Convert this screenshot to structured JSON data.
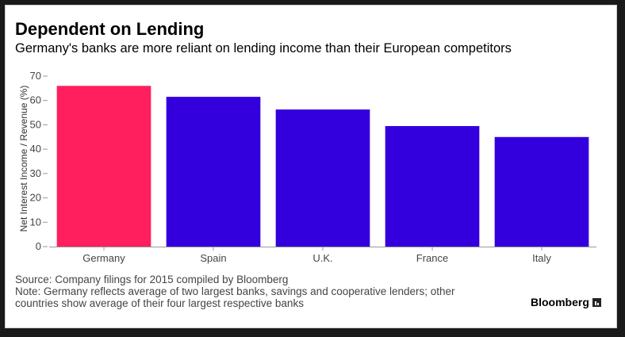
{
  "chart_data": {
    "type": "bar",
    "title": "Dependent on Lending",
    "subtitle": "Germany's banks are more reliant on lending income than their European competitors",
    "xlabel": "",
    "ylabel": "Net Interest Income / Revenue (%)",
    "categories": [
      "Germany",
      "Spain",
      "U.K.",
      "France",
      "Italy"
    ],
    "values": [
      66,
      61.5,
      56.3,
      49.5,
      45
    ],
    "ylim": [
      0,
      70
    ],
    "yticks": [
      "0",
      "10",
      "20",
      "30",
      "40",
      "50",
      "60",
      "70"
    ],
    "grid": false,
    "legend": "none",
    "colors": {
      "highlight": "#FF1F5F",
      "default": "#3300DD"
    },
    "highlight_index": 0
  },
  "footer": {
    "source": "Source: Company filings for 2015 compiled by Bloomberg",
    "note_line1": "Note: Germany reflects average of two largest banks, savings and cooperative lenders; other",
    "note_line2": "countries show average of their four largest respective banks"
  },
  "brand": {
    "name": "Bloomberg",
    "icon": "bloomberg-logo-icon"
  }
}
